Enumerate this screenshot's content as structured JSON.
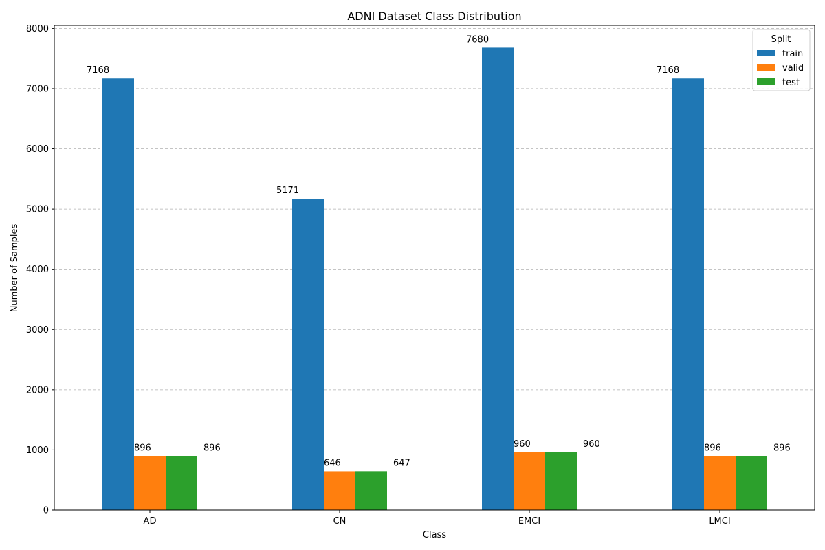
{
  "chart_data": {
    "type": "bar",
    "title": "ADNI Dataset Class Distribution",
    "xlabel": "Class",
    "ylabel": "Number of Samples",
    "categories": [
      "AD",
      "CN",
      "EMCI",
      "LMCI"
    ],
    "series": [
      {
        "name": "train",
        "color": "#1f77b4",
        "values": [
          7168,
          5171,
          7680,
          7168
        ]
      },
      {
        "name": "valid",
        "color": "#ff7f0e",
        "values": [
          896,
          646,
          960,
          896
        ]
      },
      {
        "name": "test",
        "color": "#2ca02c",
        "values": [
          896,
          647,
          960,
          896
        ]
      }
    ],
    "data_labels": {
      "train": [
        "7168",
        "5171",
        "7680",
        "7168"
      ],
      "valid": [
        "896",
        "646",
        "960",
        "896"
      ],
      "test": [
        "896",
        "647",
        "960",
        "896"
      ]
    },
    "ylim": [
      0,
      8050
    ],
    "yticks": [
      0,
      1000,
      2000,
      3000,
      4000,
      5000,
      6000,
      7000,
      8000
    ],
    "ytick_labels": [
      "0",
      "1000",
      "2000",
      "3000",
      "4000",
      "5000",
      "6000",
      "7000",
      "8000"
    ],
    "grid": "y-dashed",
    "legend": {
      "title": "Split",
      "position": "top-right"
    }
  }
}
